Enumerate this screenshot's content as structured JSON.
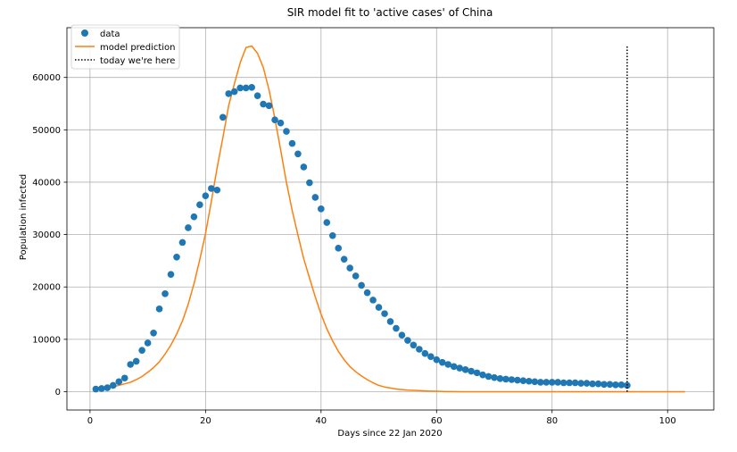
{
  "chart_data": {
    "type": "scatter",
    "title": "SIR model fit to 'active cases' of China",
    "xlabel": "Days since 22 Jan 2020",
    "ylabel": "Population infected",
    "xlim": [
      -4,
      108
    ],
    "ylim": [
      -3500,
      69500
    ],
    "xticks": [
      0,
      20,
      40,
      60,
      80,
      100
    ],
    "yticks": [
      0,
      10000,
      20000,
      30000,
      40000,
      50000,
      60000
    ],
    "grid": true,
    "legend_position": "top-left",
    "colors": {
      "data": "#1f77b4",
      "model": "#ff7f0e",
      "today": "#000000",
      "grid": "#b0b0b0"
    },
    "series": [
      {
        "name": "data",
        "kind": "points",
        "x": [
          1,
          2,
          3,
          4,
          5,
          6,
          7,
          8,
          9,
          10,
          11,
          12,
          13,
          14,
          15,
          16,
          17,
          18,
          19,
          20,
          21,
          22,
          23,
          24,
          25,
          26,
          27,
          28,
          29,
          30,
          31,
          32,
          33,
          34,
          35,
          36,
          37,
          38,
          39,
          40,
          41,
          42,
          43,
          44,
          45,
          46,
          47,
          48,
          49,
          50,
          51,
          52,
          53,
          54,
          55,
          56,
          57,
          58,
          59,
          60,
          61,
          62,
          63,
          64,
          65,
          66,
          67,
          68,
          69,
          70,
          71,
          72,
          73,
          74,
          75,
          76,
          77,
          78,
          79,
          80,
          81,
          82,
          83,
          84,
          85,
          86,
          87,
          88,
          89,
          90,
          91,
          92,
          93
        ],
        "y": [
          500,
          600,
          750,
          1200,
          1900,
          2600,
          5200,
          5800,
          7900,
          9300,
          11200,
          15800,
          18700,
          22400,
          25700,
          28500,
          31300,
          33400,
          35700,
          37400,
          38800,
          38500,
          52400,
          56900,
          57300,
          58000,
          58000,
          58100,
          56500,
          54900,
          54600,
          51900,
          51300,
          49700,
          47400,
          45400,
          42900,
          39900,
          37100,
          34900,
          32300,
          29800,
          27400,
          25300,
          23600,
          22100,
          20300,
          18900,
          17500,
          16100,
          14900,
          13400,
          12100,
          10800,
          9800,
          8900,
          8100,
          7300,
          6700,
          6100,
          5600,
          5200,
          4800,
          4500,
          4200,
          3900,
          3600,
          3200,
          2900,
          2700,
          2500,
          2400,
          2300,
          2200,
          2100,
          2000,
          1900,
          1800,
          1800,
          1800,
          1800,
          1700,
          1700,
          1700,
          1600,
          1600,
          1500,
          1500,
          1400,
          1400,
          1300,
          1300,
          1200
        ]
      },
      {
        "name": "model prediction",
        "kind": "line",
        "x": [
          1,
          2,
          3,
          4,
          5,
          6,
          7,
          8,
          9,
          10,
          11,
          12,
          13,
          14,
          15,
          16,
          17,
          18,
          19,
          20,
          21,
          22,
          23,
          24,
          25,
          26,
          27,
          28,
          29,
          30,
          31,
          32,
          33,
          34,
          35,
          36,
          37,
          38,
          39,
          40,
          41,
          42,
          43,
          44,
          45,
          46,
          47,
          48,
          49,
          50,
          51,
          52,
          53,
          54,
          55,
          56,
          57,
          58,
          59,
          60,
          61,
          62,
          63,
          64,
          65,
          70,
          75,
          80,
          85,
          90,
          95,
          100,
          103
        ],
        "y": [
          450,
          600,
          750,
          950,
          1200,
          1500,
          1800,
          2300,
          2900,
          3700,
          4600,
          5700,
          7200,
          8900,
          11000,
          13500,
          16700,
          20600,
          25200,
          30200,
          36300,
          42700,
          48500,
          54600,
          58800,
          62800,
          65700,
          66000,
          64600,
          61900,
          57600,
          52200,
          46200,
          40000,
          34600,
          29900,
          25400,
          21700,
          18100,
          14800,
          12000,
          9700,
          7700,
          6100,
          4800,
          3800,
          3000,
          2300,
          1700,
          1200,
          900,
          700,
          500,
          400,
          300,
          250,
          200,
          150,
          110,
          80,
          40,
          20,
          10,
          5,
          0,
          0,
          0,
          0,
          0,
          0,
          0,
          0,
          0
        ]
      },
      {
        "name": "today we're here",
        "kind": "vline",
        "x": 93,
        "y_from": 0,
        "y_to": 66000
      }
    ]
  }
}
